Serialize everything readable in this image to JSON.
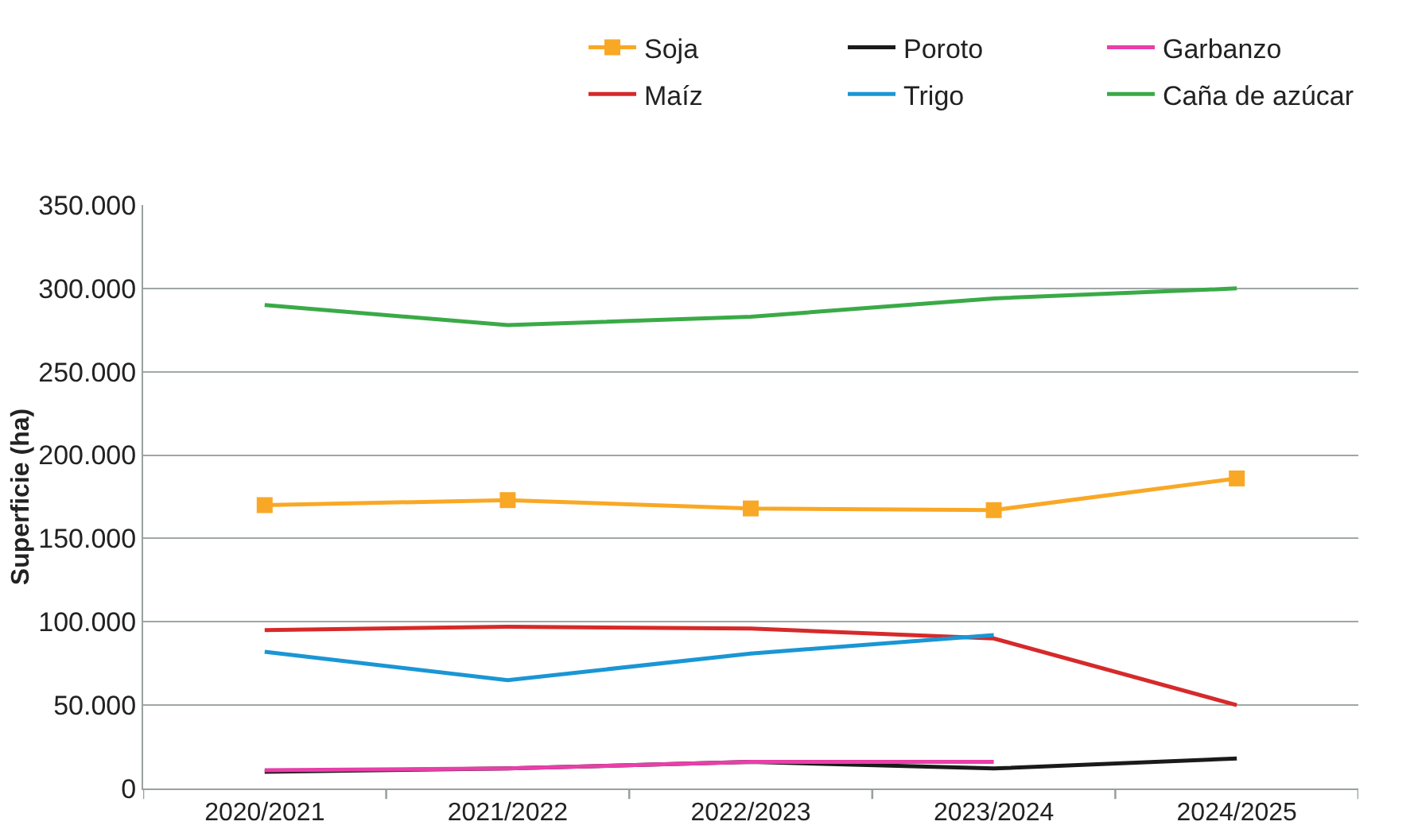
{
  "chart_data": {
    "type": "line",
    "ylabel": "Superficie (ha)",
    "categories": [
      "2020/2021",
      "2021/2022",
      "2022/2023",
      "2023/2024",
      "2024/2025"
    ],
    "series": [
      {
        "name": "Soja",
        "color": "#f9a825",
        "marker": "square",
        "values": [
          170000,
          173000,
          168000,
          167000,
          186000
        ]
      },
      {
        "name": "Poroto",
        "color": "#1a1a1a",
        "marker": "none",
        "values": [
          10000,
          12000,
          16000,
          12000,
          18000
        ]
      },
      {
        "name": "Garbanzo",
        "color": "#e83fa8",
        "marker": "none",
        "values": [
          11000,
          12000,
          16000,
          16000,
          null
        ]
      },
      {
        "name": "Maíz",
        "color": "#d62a2a",
        "marker": "none",
        "values": [
          95000,
          97000,
          96000,
          90000,
          50000
        ]
      },
      {
        "name": "Trigo",
        "color": "#1a96d4",
        "marker": "none",
        "values": [
          82000,
          65000,
          81000,
          92000,
          null
        ]
      },
      {
        "name": "Caña de azúcar",
        "color": "#3aaa47",
        "marker": "none",
        "values": [
          290000,
          278000,
          283000,
          294000,
          300000
        ]
      }
    ],
    "ylim": [
      0,
      350000
    ],
    "yticks": [
      {
        "value": 0,
        "label": "0"
      },
      {
        "value": 50000,
        "label": "50.000"
      },
      {
        "value": 100000,
        "label": "100.000"
      },
      {
        "value": 150000,
        "label": "150.000"
      },
      {
        "value": 200000,
        "label": "200.000"
      },
      {
        "value": 250000,
        "label": "250.000"
      },
      {
        "value": 300000,
        "label": "300.000"
      },
      {
        "value": 350000,
        "label": "350.000"
      }
    ],
    "grid": "y",
    "legend": "top right",
    "line_style": "solid"
  }
}
